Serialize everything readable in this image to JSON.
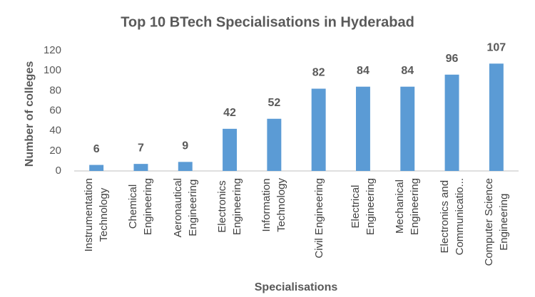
{
  "chart_data": {
    "type": "bar",
    "title": "Top 10 BTech Specialisations in Hyderabad",
    "x_label": "Specialisations",
    "y_label": "Number of colleges",
    "categories": [
      "Instrumentation\nTechnology",
      "Chemical\nEngineering",
      "Aeronautical\nEngineering",
      "Electronics\nEngineering",
      "Information\nTechnology",
      "Civil Engineering",
      "Electrical\nEngineering",
      "Mechanical\nEngineering",
      "Electronics and\nCommunicatio...",
      "Computer Science\nEngineering"
    ],
    "values": [
      6,
      7,
      9,
      42,
      52,
      82,
      84,
      84,
      96,
      107
    ],
    "color": "#5b9bd5",
    "ylim": [
      0,
      120
    ],
    "yticks": [
      0,
      20,
      40,
      60,
      80,
      100,
      120
    ],
    "grid": false
  }
}
